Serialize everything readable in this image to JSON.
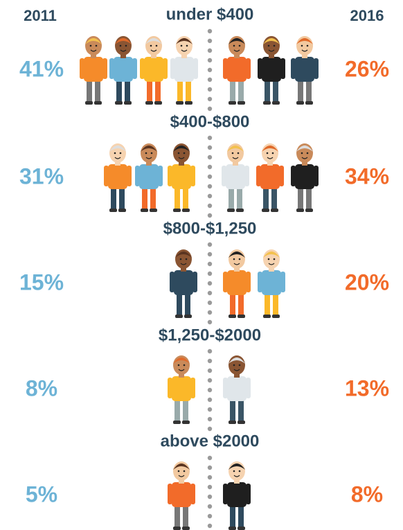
{
  "header": {
    "left_year": "2011",
    "right_year": "2016"
  },
  "rows": [
    {
      "label": "under $400",
      "left": "41%",
      "right": "26%"
    },
    {
      "label": "$400-$800",
      "left": "31%",
      "right": "34%"
    },
    {
      "label": "$800-$1,250",
      "left": "15%",
      "right": "20%"
    },
    {
      "label": "$1,250-$2000",
      "left": "8%",
      "right": "13%"
    },
    {
      "label": "above $2000",
      "left": "5%",
      "right": "8%"
    }
  ]
}
